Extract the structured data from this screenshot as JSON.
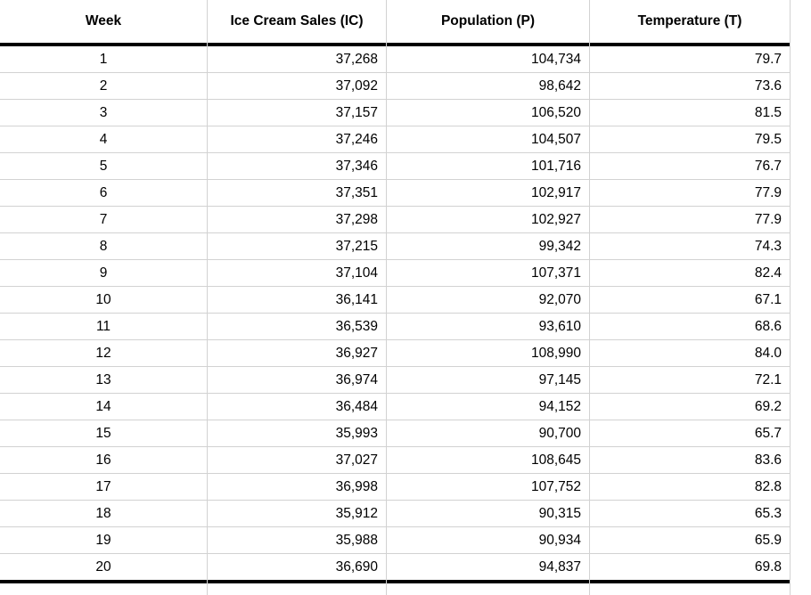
{
  "table": {
    "columns": [
      {
        "key": "week",
        "label": "Week",
        "align": "center"
      },
      {
        "key": "ice_cream_sales",
        "label": "Ice Cream Sales (IC)",
        "align": "right"
      },
      {
        "key": "population",
        "label": "Population (P)",
        "align": "right"
      },
      {
        "key": "temperature",
        "label": "Temperature (T)",
        "align": "right"
      }
    ],
    "rows": [
      [
        "1",
        "37,268",
        "104,734",
        "79.7"
      ],
      [
        "2",
        "37,092",
        "98,642",
        "73.6"
      ],
      [
        "3",
        "37,157",
        "106,520",
        "81.5"
      ],
      [
        "4",
        "37,246",
        "104,507",
        "79.5"
      ],
      [
        "5",
        "37,346",
        "101,716",
        "76.7"
      ],
      [
        "6",
        "37,351",
        "102,917",
        "77.9"
      ],
      [
        "7",
        "37,298",
        "102,927",
        "77.9"
      ],
      [
        "8",
        "37,215",
        "99,342",
        "74.3"
      ],
      [
        "9",
        "37,104",
        "107,371",
        "82.4"
      ],
      [
        "10",
        "36,141",
        "92,070",
        "67.1"
      ],
      [
        "11",
        "36,539",
        "93,610",
        "68.6"
      ],
      [
        "12",
        "36,927",
        "108,990",
        "84.0"
      ],
      [
        "13",
        "36,974",
        "97,145",
        "72.1"
      ],
      [
        "14",
        "36,484",
        "94,152",
        "69.2"
      ],
      [
        "15",
        "35,993",
        "90,700",
        "65.7"
      ],
      [
        "16",
        "37,027",
        "108,645",
        "83.6"
      ],
      [
        "17",
        "36,998",
        "107,752",
        "82.8"
      ],
      [
        "18",
        "35,912",
        "90,315",
        "65.3"
      ],
      [
        "19",
        "35,988",
        "90,934",
        "65.9"
      ],
      [
        "20",
        "36,690",
        "94,837",
        "69.8"
      ]
    ]
  },
  "colors": {
    "gridline": "#d2d2d2",
    "thick_border": "#000000",
    "background": "#ffffff",
    "text": "#000000"
  }
}
